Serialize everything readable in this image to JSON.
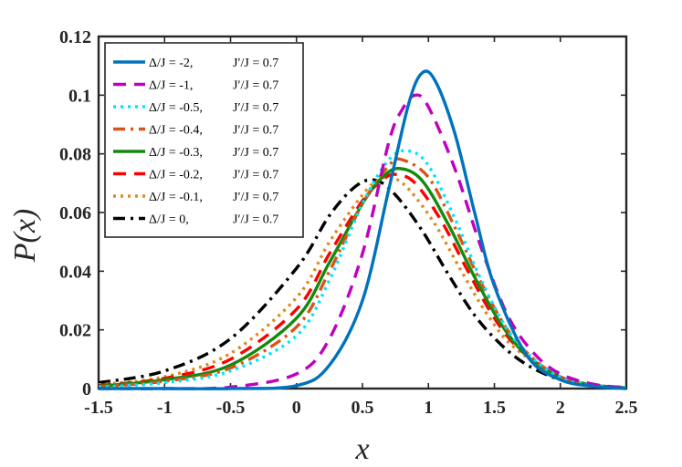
{
  "chart_data": {
    "type": "line",
    "title": "",
    "xlabel": "x",
    "ylabel": "P(x)",
    "xlim": [
      -1.5,
      2.5
    ],
    "ylim": [
      0,
      0.12
    ],
    "xticks": [
      -1.5,
      -1,
      -0.5,
      0,
      0.5,
      1,
      1.5,
      2,
      2.5
    ],
    "yticks": [
      0,
      0.02,
      0.04,
      0.06,
      0.08,
      0.1,
      0.12
    ],
    "xtick_labels": [
      "-1.5",
      "-1",
      "-0.5",
      "0",
      "0.5",
      "1",
      "1.5",
      "2",
      "2.5"
    ],
    "ytick_labels": [
      "0",
      "0.02",
      "0.04",
      "0.06",
      "0.08",
      "0.1",
      "0.12"
    ],
    "legend_position": "top-left",
    "grid": false,
    "series": [
      {
        "name": "Δ/J = -2,",
        "param": "J′/J = 0.7",
        "color": "#0072BD",
        "dash": "solid",
        "x": [
          -1.5,
          -1,
          -0.5,
          0,
          0.25,
          0.5,
          0.7,
          0.85,
          0.95,
          1.05,
          1.2,
          1.35,
          1.5,
          1.75,
          2,
          2.25,
          2.5
        ],
        "y": [
          0,
          0,
          0,
          0.001,
          0.008,
          0.03,
          0.068,
          0.097,
          0.1075,
          0.105,
          0.087,
          0.06,
          0.035,
          0.011,
          0.003,
          0.0008,
          0
        ]
      },
      {
        "name": "Δ/J = -1,",
        "param": "J′/J = 0.7",
        "color": "#C000C0",
        "dash": "dash",
        "x": [
          -1.5,
          -1,
          -0.5,
          0,
          0.25,
          0.5,
          0.7,
          0.8,
          0.9,
          1,
          1.2,
          1.4,
          1.6,
          1.8,
          2,
          2.25,
          2.5
        ],
        "y": [
          0,
          0,
          0.0005,
          0.005,
          0.017,
          0.046,
          0.084,
          0.095,
          0.1,
          0.096,
          0.075,
          0.048,
          0.025,
          0.012,
          0.005,
          0.0015,
          0.0003
        ]
      },
      {
        "name": "Δ/J = -0.5,",
        "param": "J′/J = 0.7",
        "color": "#00E5FF",
        "dash": "dot",
        "x": [
          -1.5,
          -1,
          -0.5,
          0,
          0.25,
          0.5,
          0.7,
          0.85,
          1,
          1.2,
          1.4,
          1.6,
          1.8,
          2,
          2.25,
          2.5
        ],
        "y": [
          0.0005,
          0.002,
          0.006,
          0.018,
          0.037,
          0.063,
          0.078,
          0.081,
          0.076,
          0.058,
          0.037,
          0.02,
          0.01,
          0.004,
          0.0012,
          0.0003
        ]
      },
      {
        "name": "Δ/J = -0.4,",
        "param": "J′/J = 0.7",
        "color": "#D95319",
        "dash": "dashdot",
        "x": [
          -1.5,
          -1,
          -0.5,
          0,
          0.25,
          0.5,
          0.7,
          0.8,
          1,
          1.2,
          1.4,
          1.6,
          1.8,
          2,
          2.25,
          2.5
        ],
        "y": [
          0.0006,
          0.0025,
          0.007,
          0.021,
          0.04,
          0.063,
          0.076,
          0.078,
          0.072,
          0.055,
          0.036,
          0.02,
          0.01,
          0.004,
          0.0012,
          0.0003
        ]
      },
      {
        "name": "Δ/J = -0.3,",
        "param": "J′/J = 0.7",
        "color": "#148A0C",
        "dash": "solid",
        "x": [
          -1.5,
          -1,
          -0.5,
          0,
          0.25,
          0.5,
          0.65,
          0.78,
          0.95,
          1.15,
          1.35,
          1.55,
          1.75,
          2,
          2.25,
          2.5
        ],
        "y": [
          0.0008,
          0.003,
          0.008,
          0.024,
          0.043,
          0.063,
          0.072,
          0.075,
          0.071,
          0.056,
          0.038,
          0.022,
          0.011,
          0.004,
          0.0012,
          0.0003
        ]
      },
      {
        "name": "Δ/J = -0.2,",
        "param": "J′/J = 0.7",
        "color": "#FF0000",
        "dash": "dash",
        "x": [
          -1.5,
          -1,
          -0.5,
          0,
          0.25,
          0.5,
          0.65,
          0.75,
          0.9,
          1.1,
          1.3,
          1.5,
          1.7,
          2,
          2.25,
          2.5
        ],
        "y": [
          0.001,
          0.0035,
          0.01,
          0.027,
          0.046,
          0.064,
          0.071,
          0.073,
          0.07,
          0.057,
          0.04,
          0.024,
          0.013,
          0.004,
          0.0012,
          0.0003
        ]
      },
      {
        "name": "Δ/J = -0.1,",
        "param": "J′/J = 0.7",
        "color": "#E08A1E",
        "dash": "dot",
        "x": [
          -1.5,
          -1,
          -0.5,
          0,
          0.25,
          0.5,
          0.62,
          0.72,
          0.85,
          1.05,
          1.25,
          1.45,
          1.65,
          2,
          2.25,
          2.5
        ],
        "y": [
          0.0013,
          0.004,
          0.012,
          0.031,
          0.05,
          0.066,
          0.071,
          0.072,
          0.068,
          0.056,
          0.04,
          0.025,
          0.014,
          0.004,
          0.0012,
          0.0003
        ]
      },
      {
        "name": "Δ/J = 0,",
        "param": "J′/J = 0.7",
        "color": "#000000",
        "dash": "dashdot",
        "x": [
          -1.5,
          -1,
          -0.5,
          0,
          0.25,
          0.45,
          0.6,
          0.75,
          0.95,
          1.15,
          1.35,
          1.55,
          1.75,
          2,
          2.25,
          2.5
        ],
        "y": [
          0.002,
          0.006,
          0.017,
          0.041,
          0.059,
          0.069,
          0.071,
          0.066,
          0.054,
          0.039,
          0.025,
          0.015,
          0.008,
          0.003,
          0.001,
          0.0002
        ]
      }
    ]
  }
}
